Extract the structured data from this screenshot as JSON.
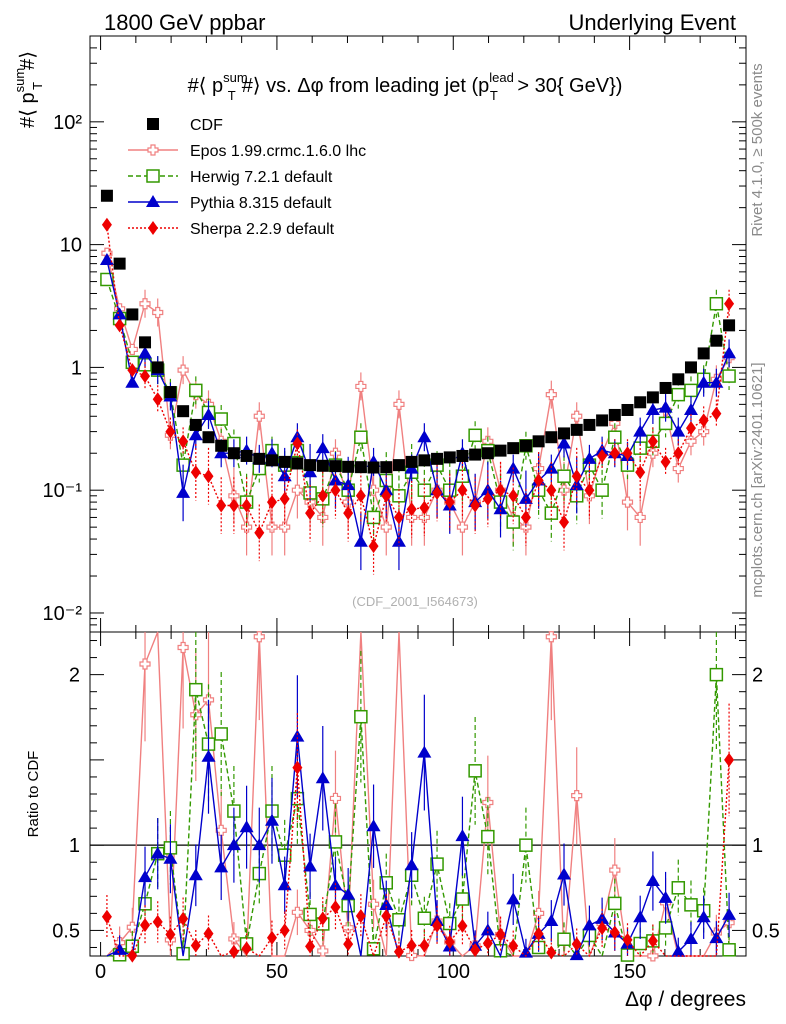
{
  "header": {
    "left": "1800 GeV ppbar",
    "right": "Underlying Event"
  },
  "side_text": {
    "rivet": "Rivet 4.1.0, ≥ 500k events",
    "mcplots": "mcplots.cern.ch [arXiv:2401.10621]"
  },
  "chart_data": [
    {
      "type": "scatter",
      "panel": "main",
      "title": "#⟨ p_T^sum #⟩ vs. Δφ from leading jet  (p_T^lead > 30{ GeV})",
      "title_parts": {
        "pre": "#⟨ p",
        "sup1": "sum",
        "sub1": "T",
        "mid": "#⟩ vs. Δφ from leading jet  (p",
        "sup2": "lead",
        "sub2": "T",
        "post": " > 30{ GeV})"
      },
      "ylabel": {
        "pre": "#⟨ p",
        "sup": "sum",
        "sub": "T",
        "post": "#⟩"
      },
      "yscale": "log",
      "ylim": [
        0.007,
        500
      ],
      "xlim": [
        -3,
        183
      ],
      "yticks": [
        {
          "v": 0.01,
          "label": "10⁻²"
        },
        {
          "v": 0.1,
          "label": "10⁻¹"
        },
        {
          "v": 1,
          "label": "1"
        },
        {
          "v": 10,
          "label": "10"
        },
        {
          "v": 100,
          "label": "10²"
        }
      ],
      "watermark": "(CDF_2001_I564673)",
      "legend_position": "top-left",
      "x": [
        1.8,
        5.4,
        9.0,
        12.6,
        16.2,
        19.8,
        23.4,
        27.0,
        30.6,
        34.2,
        37.8,
        41.4,
        45.0,
        48.6,
        52.2,
        55.8,
        59.4,
        63.0,
        66.6,
        70.2,
        73.8,
        77.4,
        81.0,
        84.6,
        88.2,
        91.8,
        95.4,
        99.0,
        102.6,
        106.2,
        109.8,
        113.4,
        117.0,
        120.6,
        124.2,
        127.8,
        131.4,
        135.0,
        138.6,
        142.2,
        145.8,
        149.4,
        153.0,
        156.6,
        160.2,
        163.8,
        167.4,
        171.0,
        174.6,
        178.2
      ],
      "series": [
        {
          "name": "CDF",
          "color": "#000000",
          "marker": "square-filled",
          "line": "none",
          "values": [
            25,
            7,
            2.7,
            1.6,
            1.0,
            0.63,
            0.44,
            0.34,
            0.27,
            0.23,
            0.2,
            0.19,
            0.18,
            0.175,
            0.17,
            0.165,
            0.16,
            0.158,
            0.157,
            0.155,
            0.154,
            0.153,
            0.154,
            0.16,
            0.17,
            0.175,
            0.18,
            0.185,
            0.19,
            0.195,
            0.2,
            0.21,
            0.22,
            0.23,
            0.25,
            0.27,
            0.29,
            0.31,
            0.34,
            0.37,
            0.41,
            0.45,
            0.52,
            0.57,
            0.68,
            0.8,
            1.0,
            1.3,
            1.65,
            2.2
          ]
        },
        {
          "name": "Epos 1.99.crmc.1.6.0 lhc",
          "color": "#f08080",
          "marker": "cross-open",
          "line": "solid",
          "values": [
            8.5,
            3.0,
            1.4,
            3.3,
            2.8,
            0.28,
            0.95,
            0.6,
            0.5,
            0.25,
            0.09,
            0.05,
            0.4,
            0.05,
            0.05,
            0.1,
            0.08,
            0.06,
            0.2,
            0.08,
            0.7,
            0.1,
            0.05,
            0.5,
            0.06,
            0.06,
            0.1,
            0.08,
            0.05,
            0.08,
            0.25,
            0.1,
            0.06,
            0.05,
            0.15,
            0.6,
            0.1,
            0.4,
            0.09,
            0.2,
            0.35,
            0.08,
            0.06,
            0.2,
            0.45,
            0.15,
            0.25,
            0.3,
            0.8,
            1.2
          ]
        },
        {
          "name": "Herwig 7.2.1 default",
          "color": "#339900",
          "marker": "square-open",
          "line": "dashed",
          "values": [
            5.2,
            2.5,
            1.1,
            1.05,
            0.95,
            0.62,
            0.16,
            0.65,
            0.43,
            0.38,
            0.24,
            0.08,
            0.15,
            0.21,
            0.16,
            0.21,
            0.095,
            0.085,
            0.16,
            0.1,
            0.27,
            0.06,
            0.12,
            0.09,
            0.14,
            0.1,
            0.16,
            0.1,
            0.13,
            0.28,
            0.21,
            0.08,
            0.055,
            0.23,
            0.1,
            0.065,
            0.13,
            0.09,
            0.16,
            0.1,
            0.27,
            0.16,
            0.22,
            0.25,
            0.35,
            0.6,
            0.65,
            0.8,
            3.3,
            0.85
          ]
        },
        {
          "name": "Pythia 8.315 default",
          "color": "#0000cc",
          "marker": "triangle-filled",
          "line": "solid",
          "values": [
            7.5,
            2.7,
            0.75,
            1.3,
            0.95,
            0.58,
            0.095,
            0.28,
            0.41,
            0.2,
            0.2,
            0.21,
            0.18,
            0.2,
            0.13,
            0.27,
            0.14,
            0.22,
            0.12,
            0.11,
            0.038,
            0.17,
            0.1,
            0.038,
            0.15,
            0.27,
            0.1,
            0.075,
            0.2,
            0.08,
            0.1,
            0.07,
            0.15,
            0.085,
            0.12,
            0.15,
            0.24,
            0.11,
            0.18,
            0.21,
            0.2,
            0.19,
            0.3,
            0.45,
            0.47,
            0.3,
            0.45,
            0.75,
            0.75,
            1.3
          ]
        },
        {
          "name": "Sherpa 2.2.9 default",
          "color": "#ee0000",
          "marker": "diamond-filled",
          "line": "dotted",
          "values": [
            14.5,
            2.2,
            0.95,
            0.85,
            0.55,
            0.3,
            0.25,
            0.14,
            0.13,
            0.075,
            0.075,
            0.075,
            0.045,
            0.08,
            0.085,
            0.24,
            0.065,
            0.09,
            0.1,
            0.065,
            0.09,
            0.035,
            0.09,
            0.06,
            0.07,
            0.072,
            0.095,
            0.08,
            0.1,
            0.075,
            0.085,
            0.1,
            0.09,
            0.06,
            0.12,
            0.1,
            0.055,
            0.13,
            0.1,
            0.19,
            0.2,
            0.2,
            0.14,
            0.25,
            0.17,
            0.2,
            0.32,
            0.37,
            0.42,
            3.3
          ]
        }
      ]
    },
    {
      "type": "scatter",
      "panel": "ratio",
      "ylabel": "Ratio to CDF",
      "xlabel": "Δφ / degrees",
      "ylim": [
        0.35,
        2.25
      ],
      "xlim": [
        -3,
        183
      ],
      "yticks": [
        {
          "v": 0.5,
          "label": "0.5"
        },
        {
          "v": 1,
          "label": "1"
        },
        {
          "v": 2,
          "label": "2"
        }
      ],
      "xticks": [
        {
          "v": 0,
          "label": "0"
        },
        {
          "v": 50,
          "label": "50"
        },
        {
          "v": 100,
          "label": "100"
        },
        {
          "v": 150,
          "label": "150"
        }
      ],
      "reference_line": 1
    }
  ]
}
